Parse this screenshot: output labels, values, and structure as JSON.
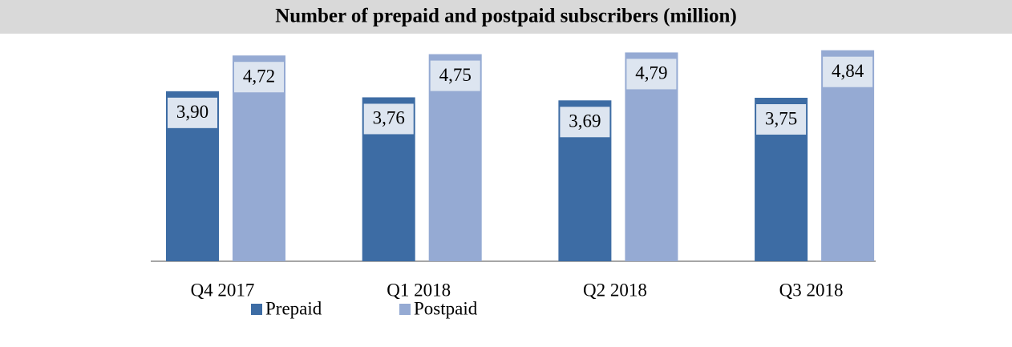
{
  "chart_data": {
    "type": "bar",
    "title": "Number of prepaid and postpaid subscribers (million)",
    "categories": [
      "Q4 2017",
      "Q1 2018",
      "Q2 2018",
      "Q3 2018"
    ],
    "series": [
      {
        "name": "Prepaid",
        "color": "#3d6ca4",
        "values": [
          3.9,
          3.76,
          3.69,
          3.75
        ],
        "value_labels": [
          "3,90",
          "3,76",
          "3,69",
          "3,75"
        ]
      },
      {
        "name": "Postpaid",
        "color": "#95aad3",
        "values": [
          4.72,
          4.75,
          4.79,
          4.84
        ],
        "value_labels": [
          "4,72",
          "4,75",
          "4,79",
          "4,84"
        ]
      }
    ]
  }
}
